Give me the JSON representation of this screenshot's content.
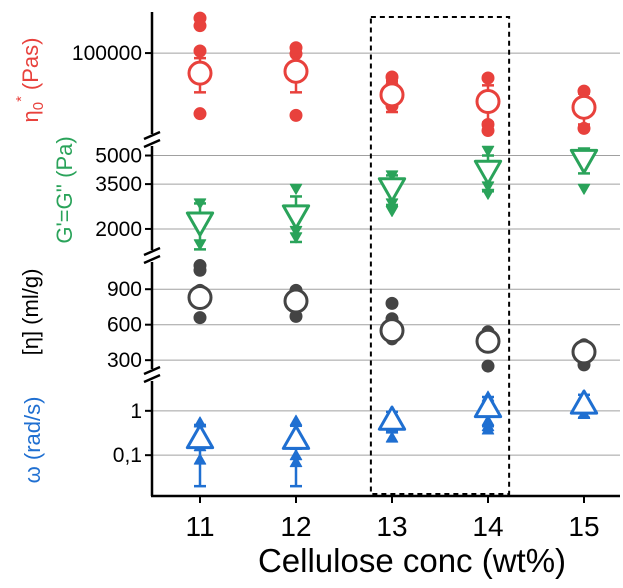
{
  "chart_data": {
    "type": "scatter",
    "xlabel": "Cellulose conc (wt%)",
    "x_ticks": [
      "11",
      "12",
      "13",
      "14",
      "15"
    ],
    "x_values": [
      11,
      12,
      13,
      14,
      15
    ],
    "highlight_box": {
      "x_from": 12.78,
      "x_to": 14.22
    },
    "colors": {
      "eta0": "#e8413c",
      "gcross": "#2aa35a",
      "eta": "#444444",
      "omega": "#1f6fd1"
    },
    "panels": [
      {
        "id": "eta0",
        "ylabel": "η0* (Pas)",
        "ylabel_main": "η",
        "ylabel_sub": "0",
        "ylabel_sup": "*",
        "ylabel_unit": "(Pas)",
        "scale": "log",
        "ylim": [
          28000,
          180000
        ],
        "ticks": [
          {
            "value": 100000,
            "label": "100000"
          }
        ],
        "marker": "circle-open",
        "series": [
          {
            "name": "mean",
            "x": [
              11,
              12,
              13,
              14,
              15
            ],
            "y": [
              75000,
              77000,
              55000,
              50000,
              46000
            ],
            "err": [
              18000,
              20000,
              12000,
              13000,
              10000
            ]
          },
          {
            "name": "samples",
            "points": [
              [
                11,
                165000
              ],
              [
                11,
                148000
              ],
              [
                11,
                103000
              ],
              [
                11,
                42000
              ],
              [
                12,
                108000
              ],
              [
                12,
                99000
              ],
              [
                12,
                41000
              ],
              [
                13,
                71000
              ],
              [
                13,
                63000
              ],
              [
                13,
                47000
              ],
              [
                14,
                70000
              ],
              [
                14,
                36000
              ],
              [
                14,
                33000
              ],
              [
                15,
                58000
              ],
              [
                15,
                34000
              ]
            ]
          }
        ]
      },
      {
        "id": "gcross",
        "ylabel": "G'=G'' (Pa)",
        "scale": "log",
        "ylim": [
          1500,
          6300
        ],
        "ticks": [
          {
            "value": 5000,
            "label": "5000"
          },
          {
            "value": 3500,
            "label": "3500"
          },
          {
            "value": 2000,
            "label": "2000"
          }
        ],
        "marker": "triangle-down-open",
        "series": [
          {
            "name": "mean",
            "x": [
              11,
              12,
              13,
              14,
              15
            ],
            "y": [
              2150,
              2350,
              3300,
              4100,
              4700
            ],
            "err": [
              600,
              650,
              600,
              900,
              700
            ]
          },
          {
            "name": "samples",
            "points": [
              [
                11,
                2750
              ],
              [
                11,
                1650
              ],
              [
                12,
                3300
              ],
              [
                12,
                1800
              ],
              [
                12,
                1950
              ],
              [
                13,
                3900
              ],
              [
                13,
                2500
              ],
              [
                13,
                2750
              ],
              [
                14,
                5300
              ],
              [
                14,
                3100
              ],
              [
                14,
                3400
              ],
              [
                15,
                5200
              ],
              [
                15,
                3300
              ]
            ]
          }
        ]
      },
      {
        "id": "eta",
        "ylabel": "[η] (ml/g)",
        "scale": "linear",
        "ylim": [
          200,
          1130
        ],
        "ticks": [
          {
            "value": 900,
            "label": "900"
          },
          {
            "value": 600,
            "label": "600"
          },
          {
            "value": 300,
            "label": "300"
          }
        ],
        "marker": "circle-open",
        "series": [
          {
            "name": "mean",
            "x": [
              11,
              12,
              13,
              14,
              15
            ],
            "y": [
              830,
              800,
              550,
              460,
              370
            ],
            "err": [
              0,
              0,
              0,
              0,
              0
            ]
          },
          {
            "name": "samples",
            "points": [
              [
                11,
                1100
              ],
              [
                11,
                1060
              ],
              [
                11,
                890
              ],
              [
                11,
                660
              ],
              [
                12,
                890
              ],
              [
                12,
                670
              ],
              [
                13,
                780
              ],
              [
                13,
                650
              ],
              [
                13,
                480
              ],
              [
                14,
                540
              ],
              [
                14,
                420
              ],
              [
                14,
                250
              ],
              [
                15,
                430
              ],
              [
                15,
                260
              ]
            ]
          }
        ]
      },
      {
        "id": "omega",
        "ylabel": "ω (rad/s)",
        "scale": "log",
        "ylim": [
          0.012,
          5.5
        ],
        "ticks": [
          {
            "value": 1,
            "label": "1"
          },
          {
            "value": 0.1,
            "label": "0,1"
          }
        ],
        "marker": "triangle-up-open",
        "series": [
          {
            "name": "mean",
            "x": [
              11,
              12,
              13,
              14,
              15
            ],
            "y": [
              0.25,
              0.24,
              0.65,
              1.25,
              1.5
            ],
            "err": [
              0.23,
              0.22,
              0.3,
              0.8,
              0.8
            ]
          },
          {
            "name": "samples",
            "points": [
              [
                11,
                0.55
              ],
              [
                11,
                0.16
              ],
              [
                11,
                0.08
              ],
              [
                12,
                0.6
              ],
              [
                12,
                0.17
              ],
              [
                12,
                0.1
              ],
              [
                12,
                0.07
              ],
              [
                13,
                0.95
              ],
              [
                13,
                0.4
              ],
              [
                13,
                0.25
              ],
              [
                14,
                2.1
              ],
              [
                14,
                0.6
              ],
              [
                14,
                0.45
              ],
              [
                14,
                0.38
              ],
              [
                15,
                2.0
              ],
              [
                15,
                0.85
              ]
            ]
          }
        ]
      }
    ]
  }
}
